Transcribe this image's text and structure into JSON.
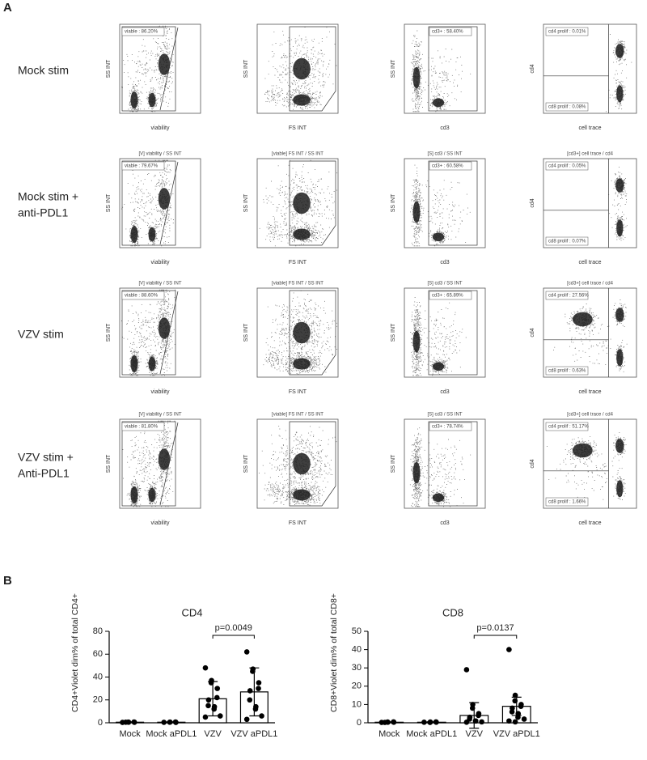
{
  "panel_a": {
    "label": "A",
    "rows": [
      {
        "label": [
          "Mock stim"
        ],
        "plots": [
          {
            "y_label": "SS INT",
            "x_label": "viability",
            "gates": [
              "viable : 86.20%"
            ]
          },
          {
            "y_label": "SS INT",
            "x_label": "FS INT"
          },
          {
            "y_label": "SS INT",
            "x_label": "cd3",
            "gates": [
              "cd3+ : 58.40%"
            ]
          },
          {
            "y_label": "cd4",
            "x_label": "cell trace",
            "gates": [
              "cd4 prolif : 0.01%",
              "cd8 prolif : 0.08%"
            ]
          }
        ]
      },
      {
        "label": [
          "Mock stim +",
          "anti-PDL1"
        ],
        "plots": [
          {
            "title": "[V] viability / SS INT",
            "y_label": "SS INT",
            "x_label": "viability",
            "gates": [
              "viable : 79.67%"
            ]
          },
          {
            "title": "[viable] FS INT / SS INT",
            "y_label": "SS INT",
            "x_label": "FS INT"
          },
          {
            "title": "[S] cd3 / SS INT",
            "y_label": "SS INT",
            "x_label": "cd3",
            "gates": [
              "cd3+ : 60.58%"
            ]
          },
          {
            "title": "[cd3+] cell trace / cd4",
            "y_label": "cd4",
            "x_label": "cell trace",
            "gates": [
              "cd4 prolif : 0.05%",
              "cd8 prolif : 0.07%"
            ]
          }
        ]
      },
      {
        "label": [
          "VZV stim"
        ],
        "plots": [
          {
            "title": "[V] viability / SS INT",
            "y_label": "SS INT",
            "x_label": "viability",
            "gates": [
              "viable : 88.60%"
            ]
          },
          {
            "title": "[viable] FS INT / SS INT",
            "y_label": "SS INT",
            "x_label": "FS INT"
          },
          {
            "title": "[S] cd3 / SS INT",
            "y_label": "SS INT",
            "x_label": "cd3",
            "gates": [
              "cd3+ : 65.89%"
            ]
          },
          {
            "title": "[cd3+] cell trace / cd4",
            "y_label": "cd4",
            "x_label": "cell trace",
            "gates": [
              "cd4 prolif : 27.56%",
              "cd8 prolif : 0.63%"
            ]
          }
        ]
      },
      {
        "label": [
          "VZV stim +",
          "Anti-PDL1"
        ],
        "plots": [
          {
            "title": "[V] viability / SS INT",
            "y_label": "SS INT",
            "x_label": "viability",
            "gates": [
              "viable : 81.80%"
            ]
          },
          {
            "title": "[viable] FS INT / SS INT",
            "y_label": "SS INT",
            "x_label": "FS INT"
          },
          {
            "title": "[S] cd3 / SS INT",
            "y_label": "SS INT",
            "x_label": "cd3",
            "gates": [
              "cd3+ : 78.74%"
            ]
          },
          {
            "title": "[cd3+] cell trace / cd4",
            "y_label": "cd4",
            "x_label": "cell trace",
            "gates": [
              "cd4 prolif : 51.17%",
              "cd8 prolif : 1.66%"
            ]
          }
        ]
      }
    ]
  },
  "panel_b": {
    "label": "B"
  },
  "chart_data": [
    {
      "type": "bar",
      "title": "CD4",
      "y_label": "CD4+Violet dim% of total CD4+",
      "categories": [
        "Mock",
        "Mock aPDL1",
        "VZV",
        "VZV aPDL1"
      ],
      "values": [
        0.5,
        0.5,
        21,
        27
      ],
      "errors": [
        0.3,
        0.3,
        15,
        21
      ],
      "points": [
        [
          0.3,
          0.5,
          0.6,
          0.4,
          0.7,
          0.5
        ],
        [
          0.4,
          0.6,
          0.5,
          0.3,
          0.7
        ],
        [
          48,
          37,
          35,
          30,
          22,
          20,
          15,
          14,
          12,
          6,
          5
        ],
        [
          62,
          47,
          45,
          35,
          30,
          28,
          20,
          14,
          12,
          6,
          3
        ]
      ],
      "color": "#000000",
      "ylim": [
        0,
        80
      ],
      "yticks": [
        0,
        20,
        40,
        60,
        80
      ],
      "annotation": {
        "text": "p=0.0049",
        "from": 2,
        "to": 3
      }
    },
    {
      "type": "bar",
      "title": "CD8",
      "y_label": "CD8+Violet dim% of total CD8+",
      "categories": [
        "Mock",
        "Mock aPDL1",
        "VZV",
        "VZV aPDL1"
      ],
      "values": [
        0.3,
        0.3,
        4,
        9
      ],
      "errors": [
        0.2,
        0.2,
        7,
        5
      ],
      "points": [
        [
          0.2,
          0.3,
          0.4,
          0.3,
          0.5,
          0.2
        ],
        [
          0.3,
          0.4,
          0.2,
          0.3,
          0.5
        ],
        [
          29,
          10,
          8,
          5,
          4,
          3,
          2,
          1,
          1,
          0.5,
          0.3
        ],
        [
          40,
          15,
          12,
          10,
          9,
          8,
          6,
          5,
          3,
          2,
          1,
          0.5
        ]
      ],
      "color": "#000000",
      "ylim": [
        0,
        50
      ],
      "yticks": [
        0,
        10,
        20,
        30,
        40,
        50
      ],
      "annotation": {
        "text": "p=0.0137",
        "from": 2,
        "to": 3
      }
    }
  ]
}
